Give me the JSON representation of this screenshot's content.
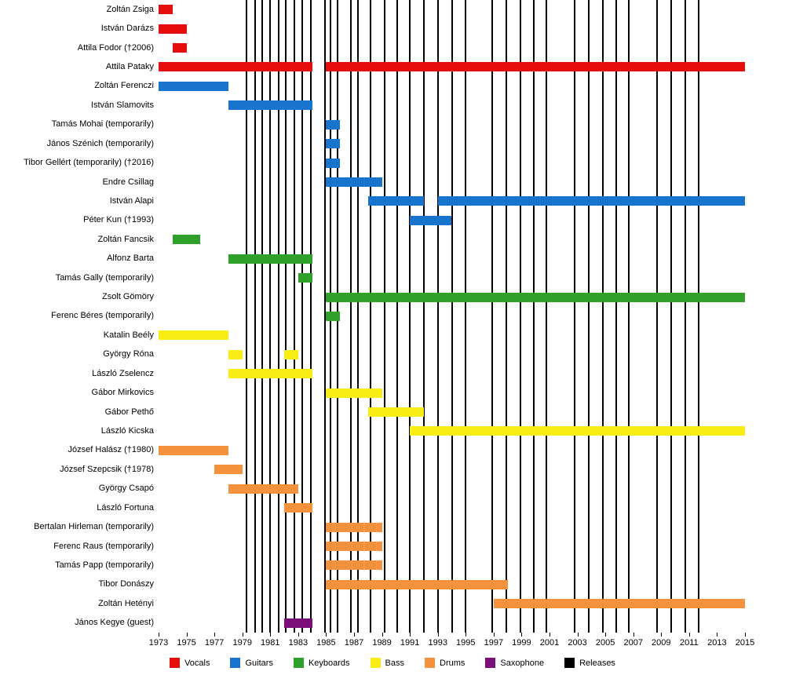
{
  "chart_data": {
    "type": "timeline",
    "title": "",
    "x_axis": {
      "start": 1973,
      "end": 2015,
      "tick_interval": 2,
      "tick_labels": [
        "1973",
        "1975",
        "1977",
        "1979",
        "1981",
        "1983",
        "1985",
        "1987",
        "1989",
        "1991",
        "1993",
        "1995",
        "1997",
        "1999",
        "2001",
        "2003",
        "2005",
        "2007",
        "2009",
        "2011",
        "2013",
        "2015"
      ]
    },
    "legend": [
      {
        "key": "vocals",
        "label": "Vocals",
        "color": "#e60d0d"
      },
      {
        "key": "guitars",
        "label": "Guitars",
        "color": "#1874cd"
      },
      {
        "key": "keyboards",
        "label": "Keyboards",
        "color": "#2fa12b"
      },
      {
        "key": "bass",
        "label": "Bass",
        "color": "#f8ee16"
      },
      {
        "key": "drums",
        "label": "Drums",
        "color": "#f5923e"
      },
      {
        "key": "saxophone",
        "label": "Saxophone",
        "color": "#7a0f7a"
      },
      {
        "key": "releases",
        "label": "Releases",
        "color": "#000000"
      }
    ],
    "releases": [
      1979.3,
      1979.9,
      1980.4,
      1981.0,
      1981.6,
      1982.1,
      1982.7,
      1983.3,
      1983.9,
      1984.9,
      1985.3,
      1985.8,
      1986.8,
      1987.3,
      1988.2,
      1989.2,
      1990.1,
      1991.0,
      1992.0,
      1993.0,
      1994.0,
      1995.0,
      1996.9,
      1997.9,
      1998.9,
      1999.9,
      2000.8,
      2002.8,
      2003.8,
      2004.8,
      2005.8,
      2006.7,
      2008.7,
      2009.7,
      2010.7,
      2011.7
    ],
    "members": [
      {
        "name": "Zoltán Zsiga",
        "role": "vocals",
        "segments": [
          [
            1973,
            1974
          ]
        ]
      },
      {
        "name": "István Darázs",
        "role": "vocals",
        "segments": [
          [
            1973,
            1975
          ]
        ]
      },
      {
        "name": "Attila Fodor (†2006)",
        "role": "vocals",
        "segments": [
          [
            1974,
            1975
          ]
        ]
      },
      {
        "name": "Attila Pataky",
        "role": "vocals",
        "segments": [
          [
            1973,
            1984
          ],
          [
            1985,
            2015
          ]
        ]
      },
      {
        "name": "Zoltán Ferenczi",
        "role": "guitars",
        "segments": [
          [
            1973,
            1978
          ]
        ]
      },
      {
        "name": "István Slamovits",
        "role": "guitars",
        "segments": [
          [
            1978,
            1984
          ]
        ]
      },
      {
        "name": "Tamás Mohai (temporarily)",
        "role": "guitars",
        "segments": [
          [
            1985,
            1986
          ]
        ]
      },
      {
        "name": "János Szénich (temporarily)",
        "role": "guitars",
        "segments": [
          [
            1985,
            1986
          ]
        ]
      },
      {
        "name": "Tibor Gellért (temporarily) (†2016)",
        "role": "guitars",
        "segments": [
          [
            1985,
            1986
          ]
        ]
      },
      {
        "name": "Endre Csillag",
        "role": "guitars",
        "segments": [
          [
            1985,
            1989
          ]
        ]
      },
      {
        "name": "István Alapi",
        "role": "guitars",
        "segments": [
          [
            1988,
            1992
          ],
          [
            1993,
            2015
          ]
        ]
      },
      {
        "name": "Péter Kun (†1993)",
        "role": "guitars",
        "segments": [
          [
            1991,
            1994
          ]
        ]
      },
      {
        "name": "Zoltán Fancsik",
        "role": "keyboards",
        "segments": [
          [
            1974,
            1976
          ]
        ]
      },
      {
        "name": "Alfonz Barta",
        "role": "keyboards",
        "segments": [
          [
            1978,
            1984
          ]
        ]
      },
      {
        "name": "Tamás Gally (temporarily)",
        "role": "keyboards",
        "segments": [
          [
            1983,
            1984
          ]
        ]
      },
      {
        "name": "Zsolt Gömöry",
        "role": "keyboards",
        "segments": [
          [
            1985,
            2015
          ]
        ]
      },
      {
        "name": "Ferenc Béres (temporarily)",
        "role": "keyboards",
        "segments": [
          [
            1985,
            1986
          ]
        ]
      },
      {
        "name": "Katalin Beély",
        "role": "bass",
        "segments": [
          [
            1973,
            1978
          ]
        ]
      },
      {
        "name": "György Róna",
        "role": "bass",
        "segments": [
          [
            1978,
            1979
          ],
          [
            1982,
            1983
          ]
        ]
      },
      {
        "name": "László Zselencz",
        "role": "bass",
        "segments": [
          [
            1978,
            1984
          ]
        ]
      },
      {
        "name": "Gábor Mirkovics",
        "role": "bass",
        "segments": [
          [
            1985,
            1989
          ]
        ]
      },
      {
        "name": "Gábor Pethő",
        "role": "bass",
        "segments": [
          [
            1988,
            1992
          ]
        ]
      },
      {
        "name": "László Kicska",
        "role": "bass",
        "segments": [
          [
            1991,
            2015
          ]
        ]
      },
      {
        "name": "József Halász (†1980)",
        "role": "drums",
        "segments": [
          [
            1973,
            1978
          ]
        ]
      },
      {
        "name": "József Szepcsik (†1978)",
        "role": "drums",
        "segments": [
          [
            1977,
            1979
          ]
        ]
      },
      {
        "name": "György Csapó",
        "role": "drums",
        "segments": [
          [
            1978,
            1983
          ]
        ]
      },
      {
        "name": "László Fortuna",
        "role": "drums",
        "segments": [
          [
            1982,
            1984
          ]
        ]
      },
      {
        "name": "Bertalan Hirleman (temporarily)",
        "role": "drums",
        "segments": [
          [
            1985,
            1989
          ]
        ]
      },
      {
        "name": "Ferenc Raus (temporarily)",
        "role": "drums",
        "segments": [
          [
            1985,
            1989
          ]
        ]
      },
      {
        "name": "Tamás Papp (temporarily)",
        "role": "drums",
        "segments": [
          [
            1985,
            1989
          ]
        ]
      },
      {
        "name": "Tibor Donászy",
        "role": "drums",
        "segments": [
          [
            1985,
            1998
          ]
        ]
      },
      {
        "name": "Zoltán Hetényi",
        "role": "drums",
        "segments": [
          [
            1997,
            2015
          ]
        ]
      },
      {
        "name": "János Kegye (guest)",
        "role": "saxophone",
        "segments": [
          [
            1982,
            1984
          ]
        ]
      }
    ]
  }
}
